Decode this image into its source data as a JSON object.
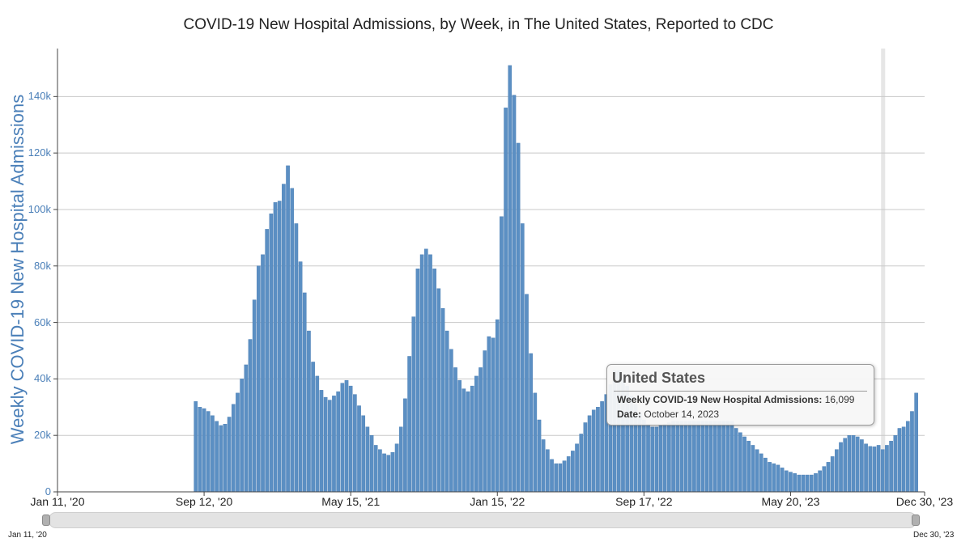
{
  "chart_data": {
    "type": "bar",
    "title": "COVID-19 New Hospital Admissions, by Week, in The United States, Reported to CDC",
    "ylabel": "Weekly COVID-19 New Hospital Admissions",
    "xlabel": "",
    "ylim": [
      0,
      157000
    ],
    "yticks": [
      {
        "value": 0,
        "label": "0"
      },
      {
        "value": 20000,
        "label": "20k"
      },
      {
        "value": 40000,
        "label": "40k"
      },
      {
        "value": 60000,
        "label": "60k"
      },
      {
        "value": 80000,
        "label": "80k"
      },
      {
        "value": 100000,
        "label": "100k"
      },
      {
        "value": 120000,
        "label": "120k"
      },
      {
        "value": 140000,
        "label": "140k"
      }
    ],
    "x_range_weeks": [
      0,
      207
    ],
    "first_bar_week": 33,
    "xticks": [
      {
        "week": 0,
        "label": "Jan 11, '20"
      },
      {
        "week": 35,
        "label": "Sep 12, '20"
      },
      {
        "week": 70,
        "label": "May 15, '21"
      },
      {
        "week": 105,
        "label": "Jan 15, '22"
      },
      {
        "week": 140,
        "label": "Sep 17, '22"
      },
      {
        "week": 175,
        "label": "May 20, '23"
      },
      {
        "week": 207,
        "label": "Dec 30, '23"
      }
    ],
    "highlight_week": 197,
    "values": [
      32000,
      30000,
      29500,
      28500,
      27000,
      25000,
      23500,
      24000,
      26500,
      31000,
      35000,
      40000,
      45000,
      54000,
      68000,
      80000,
      84000,
      93000,
      98500,
      102500,
      103000,
      109000,
      115500,
      107500,
      95000,
      81500,
      70500,
      57000,
      46000,
      41000,
      36000,
      33500,
      32500,
      34000,
      35500,
      38500,
      39500,
      37500,
      34500,
      30500,
      27000,
      23000,
      20000,
      16500,
      15000,
      13500,
      13000,
      14000,
      17000,
      23000,
      33000,
      48000,
      62000,
      79000,
      84000,
      86000,
      84000,
      79000,
      72000,
      65000,
      57000,
      50500,
      44000,
      39500,
      36500,
      35500,
      37500,
      41000,
      44000,
      50000,
      55000,
      54500,
      61000,
      97500,
      136000,
      151000,
      140500,
      123500,
      95000,
      70000,
      49000,
      35000,
      25500,
      18500,
      15000,
      11500,
      10000,
      10000,
      11000,
      12500,
      14500,
      17000,
      20500,
      24500,
      27000,
      29000,
      30000,
      32000,
      34500,
      38000,
      43000,
      43000,
      40000,
      37500,
      34000,
      31000,
      28000,
      25500,
      24000,
      23000,
      23000,
      23500,
      24000,
      24500,
      25000,
      25000,
      25000,
      25000,
      25000,
      25000,
      25000,
      25000,
      25000,
      25000,
      25000,
      25000,
      25000,
      25000,
      25000,
      22500,
      21000,
      19500,
      18000,
      16500,
      15000,
      13500,
      12000,
      10500,
      10000,
      9500,
      8500,
      7500,
      7000,
      6500,
      6000,
      6000,
      6000,
      6000,
      6500,
      7500,
      9000,
      10500,
      12500,
      15000,
      17500,
      19000,
      20000,
      20000,
      19500,
      18500,
      17000,
      16099,
      16000,
      16500,
      15000,
      16500,
      18000,
      20000,
      22500,
      23000,
      25000,
      28500,
      35000
    ]
  },
  "tooltip": {
    "title": "United States",
    "metric_label": "Weekly COVID-19 New Hospital Admissions:",
    "metric_value": "16,099",
    "date_label": "Date:",
    "date_value": "October 14, 2023"
  },
  "range_slider": {
    "start_label": "Jan 11, '20",
    "end_label": "Dec 30, '23"
  },
  "colors": {
    "bar": "#5b8fc3",
    "bar_edge": "#4a7db3",
    "grid": "#c8c8c8",
    "axis": "#444444",
    "highlight": "#e6e6e6",
    "ylabel": "#4a7fb8"
  }
}
